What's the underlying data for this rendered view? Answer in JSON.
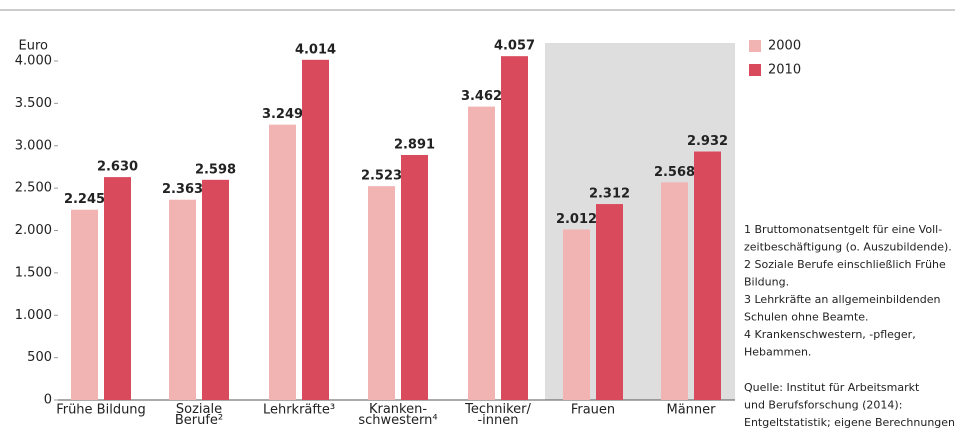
{
  "chart_data": {
    "type": "bar",
    "y_label": "Euro",
    "categories": [
      "Frühe Bildung",
      "Soziale\nBerufe²",
      "Lehrkräfte³",
      "Kranken-\nschwestern⁴",
      "Techniker/\n-innen",
      "Frauen",
      "Männer"
    ],
    "series": [
      {
        "name": "2000",
        "color": "#f2b3b3",
        "values": [
          2245,
          2363,
          3249,
          2523,
          3462,
          2012,
          2568
        ],
        "value_labels": [
          "2.245",
          "2.363",
          "3.249",
          "2.523",
          "3.462",
          "2.012",
          "2.568"
        ]
      },
      {
        "name": "2010",
        "color": "#d94a5c",
        "values": [
          2630,
          2598,
          4014,
          2891,
          4057,
          2312,
          2932
        ],
        "value_labels": [
          "2.630",
          "2.598",
          "4.014",
          "2.891",
          "4.057",
          "2.312",
          "2.932"
        ]
      }
    ],
    "ylim": [
      0,
      4000
    ],
    "yticks": [
      0,
      500,
      {
        "value": 1000,
        "label": "1.000"
      },
      {
        "value": 1500,
        "label": "1.500"
      },
      {
        "value": 2000,
        "label": "2.000"
      },
      {
        "value": 2500,
        "label": "2.500"
      },
      {
        "value": 3000,
        "label": "3.000"
      },
      {
        "value": 3500,
        "label": "3.500"
      },
      {
        "value": 4000,
        "label": "4.000"
      }
    ],
    "notes": [
      "1  Bruttomonatsentgelt für eine Voll-",
      "zeitbeschäftigung (o. Auszubildende).",
      "2  Soziale Berufe einschließlich Frühe",
      "Bildung.",
      "3  Lehrkräfte an allgemeinbildenden",
      "Schulen ohne Beamte.",
      "4  Krankenschwestern, -pfleger,",
      "Hebammen."
    ],
    "source": [
      "Quelle:  Institut für Arbeitsmarkt",
      "und Berufsforschung (2014):",
      "Entgeltstatistik; eigene Berechnungen"
    ]
  }
}
